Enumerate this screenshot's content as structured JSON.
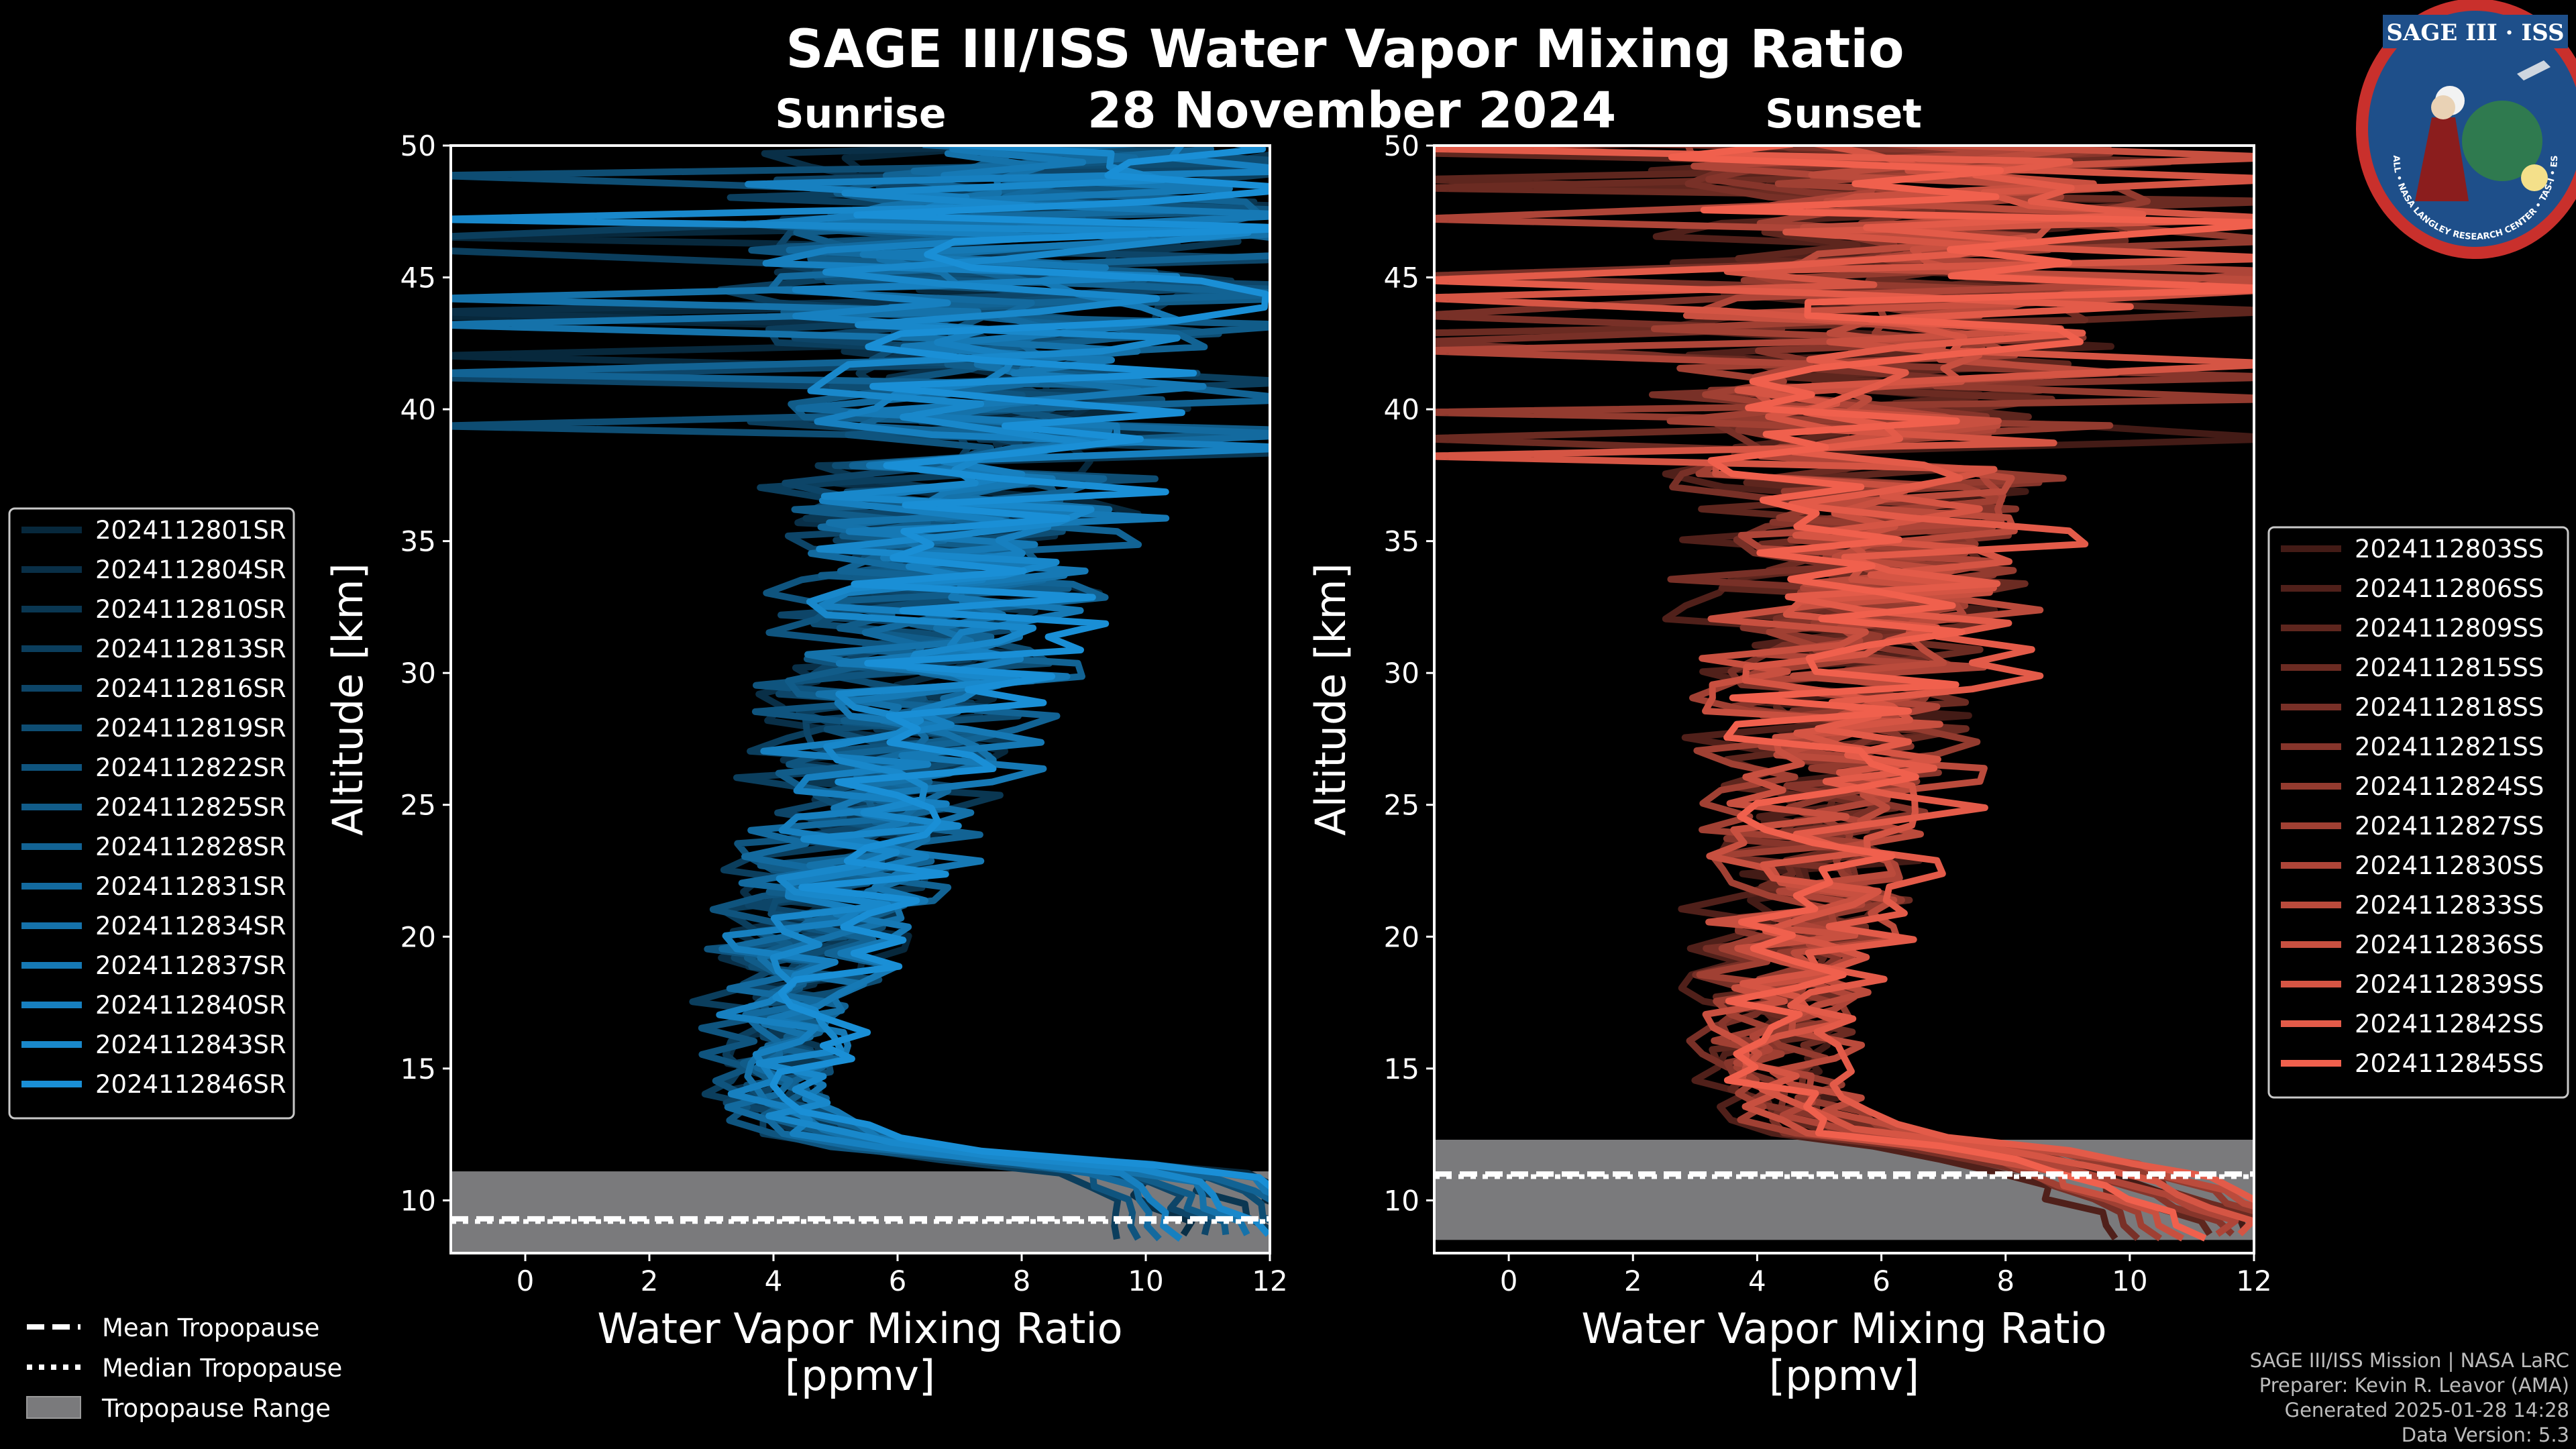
{
  "header": {
    "title": "SAGE III/ISS Water Vapor Mixing Ratio",
    "date": "28 November 2024",
    "left_label": "Sunrise",
    "right_label": "Sunset"
  },
  "logo": {
    "text": "SAGE III · ISS",
    "ring_text": "BALL • NASA LANGLEY RESEARCH CENTER • TAS-I • ESA"
  },
  "colors": {
    "background": "#000000",
    "sunrise": "#1a8fd6",
    "sunset": "#f0604d",
    "tropopause_range": "#7a7a7c"
  },
  "chart_data": [
    {
      "type": "line",
      "panel": "Sunrise",
      "xlabel": "Water Vapor Mixing Ratio\n[ppmv]",
      "xlabel_lines": [
        "Water Vapor Mixing Ratio",
        "[ppmv]"
      ],
      "ylabel": "Altitude [km]",
      "xlim": [
        -1.2,
        12
      ],
      "ylim": [
        8,
        50
      ],
      "xticks": [
        0,
        2,
        4,
        6,
        8,
        10,
        12
      ],
      "yticks": [
        10,
        15,
        20,
        25,
        30,
        35,
        40,
        45,
        50
      ],
      "series": [
        "2024112801SR",
        "2024112804SR",
        "2024112810SR",
        "2024112813SR",
        "2024112816SR",
        "2024112819SR",
        "2024112822SR",
        "2024112825SR",
        "2024112828SR",
        "2024112831SR",
        "2024112834SR",
        "2024112837SR",
        "2024112840SR",
        "2024112843SR",
        "2024112846SR"
      ],
      "base_profile": {
        "altitude_km": [
          9,
          10,
          11,
          11.5,
          12,
          13,
          14,
          15,
          16,
          17,
          18,
          19,
          20,
          21,
          22,
          23,
          24,
          25,
          26,
          27,
          28,
          29,
          30,
          32,
          34,
          36,
          38,
          40,
          42,
          44,
          46,
          48,
          50
        ],
        "ppmv": [
          11,
          10.5,
          10,
          8,
          5.5,
          4,
          3.6,
          3.7,
          3.8,
          3.9,
          4.0,
          4.2,
          4.4,
          4.6,
          4.8,
          5.0,
          5.2,
          5.4,
          5.6,
          5.7,
          5.8,
          5.9,
          6.0,
          6.2,
          6.4,
          6.6,
          6.8,
          7.0,
          7.2,
          7.3,
          7.4,
          7.5,
          7.6
        ]
      },
      "tropopause": {
        "mean_km": 9.3,
        "median_km": 9.2,
        "range_km": [
          8,
          11.1
        ]
      }
    },
    {
      "type": "line",
      "panel": "Sunset",
      "xlabel": "Water Vapor Mixing Ratio\n[ppmv]",
      "xlabel_lines": [
        "Water Vapor Mixing Ratio",
        "[ppmv]"
      ],
      "ylabel": "Altitude [km]",
      "xlim": [
        -1.2,
        12
      ],
      "ylim": [
        8,
        50
      ],
      "xticks": [
        0,
        2,
        4,
        6,
        8,
        10,
        12
      ],
      "yticks": [
        10,
        15,
        20,
        25,
        30,
        35,
        40,
        45,
        50
      ],
      "series": [
        "2024112803SS",
        "2024112806SS",
        "2024112809SS",
        "2024112815SS",
        "2024112818SS",
        "2024112821SS",
        "2024112824SS",
        "2024112827SS",
        "2024112830SS",
        "2024112833SS",
        "2024112836SS",
        "2024112839SS",
        "2024112842SS",
        "2024112845SS"
      ],
      "base_profile": {
        "altitude_km": [
          9,
          10,
          11,
          12,
          12.5,
          13,
          14,
          15,
          16,
          17,
          18,
          19,
          20,
          21,
          22,
          23,
          24,
          25,
          26,
          27,
          28,
          29,
          30,
          32,
          34,
          36,
          38,
          40,
          42,
          44,
          46,
          48,
          50
        ],
        "ppmv": [
          12,
          11,
          10,
          8,
          6,
          5.2,
          4.9,
          4.8,
          4.8,
          4.9,
          5.0,
          5.1,
          5.2,
          5.3,
          5.4,
          5.5,
          5.6,
          5.7,
          5.8,
          5.9,
          6.0,
          6.0,
          6.1,
          6.2,
          6.3,
          6.4,
          6.5,
          6.6,
          6.7,
          6.8,
          6.8,
          6.9,
          7.0
        ]
      },
      "tropopause": {
        "mean_km": 11.0,
        "median_km": 10.9,
        "range_km": [
          8.5,
          12.3
        ]
      }
    }
  ],
  "tropopause_legend": {
    "mean": "Mean Tropopause",
    "median": "Median Tropopause",
    "range": "Tropopause Range"
  },
  "credits": [
    "SAGE III/ISS Mission | NASA LaRC",
    "Preparer: Kevin R. Leavor (AMA)",
    "Generated 2025-01-28 14:28",
    "Data Version: 5.3"
  ]
}
